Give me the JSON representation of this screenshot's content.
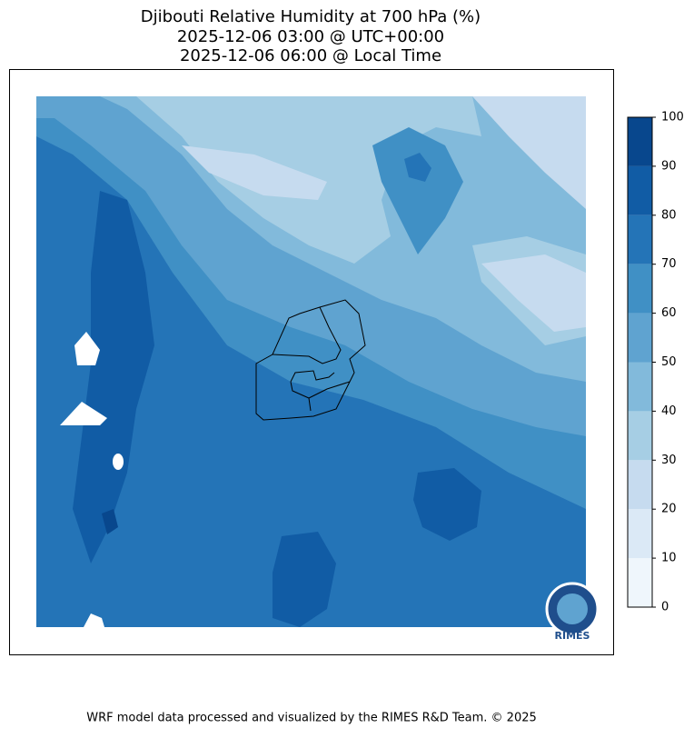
{
  "title": [
    "Djibouti Relative Humidity at 700 hPa (%)",
    "2025-12-06 03:00 @ UTC+00:00",
    "2025-12-06 06:00 @ Local Time"
  ],
  "colorbar": {
    "levels": [
      0,
      10,
      20,
      30,
      40,
      50,
      60,
      70,
      80,
      90,
      100
    ],
    "colors": [
      "#eff6fc",
      "#dbe9f6",
      "#c6dbef",
      "#a6cee4",
      "#82badb",
      "#5fa3d0",
      "#4090c5",
      "#2474b7",
      "#115ca5",
      "#08478d"
    ]
  },
  "logo": "RIMES",
  "footer": "WRF model data processed and visualized by the RIMES R&D Team. © 2025"
}
